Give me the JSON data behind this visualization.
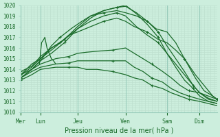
{
  "xlabel": "Pression niveau de la mer( hPa )",
  "bg_color": "#cceedd",
  "grid_color_minor": "#bbddcc",
  "grid_color_major": "#99ccbb",
  "line_color": "#1a6b2a",
  "ylim": [
    1010,
    1020
  ],
  "yticks": [
    1010,
    1011,
    1012,
    1013,
    1014,
    1015,
    1016,
    1017,
    1018,
    1019,
    1020
  ],
  "day_labels": [
    "Mer",
    "Lun",
    "Jeu",
    "Ven",
    "Sam",
    "Dim"
  ],
  "day_positions": [
    0.0,
    0.9,
    2.6,
    4.8,
    6.7,
    8.2
  ],
  "xlim": [
    0,
    9.0
  ],
  "lines": [
    {
      "x": [
        0.0,
        0.5,
        0.9,
        1.4,
        2.0,
        2.6,
        3.2,
        3.8,
        4.4,
        4.8,
        5.3,
        5.8,
        6.3,
        6.7,
        7.1,
        7.5,
        7.9,
        8.2,
        8.6,
        9.0
      ],
      "y": [
        1013.2,
        1014.0,
        1014.8,
        1015.5,
        1016.5,
        1017.8,
        1018.8,
        1019.5,
        1019.8,
        1020.0,
        1019.2,
        1018.2,
        1017.0,
        1015.5,
        1014.2,
        1013.0,
        1012.2,
        1011.5,
        1011.0,
        1010.8
      ]
    },
    {
      "x": [
        0.0,
        0.5,
        0.9,
        1.4,
        2.0,
        2.6,
        3.2,
        3.8,
        4.4,
        4.8,
        5.3,
        5.8,
        6.3,
        6.7,
        7.1,
        7.5,
        7.9,
        8.2,
        8.6,
        9.0
      ],
      "y": [
        1013.5,
        1014.2,
        1015.0,
        1015.8,
        1016.8,
        1018.0,
        1019.0,
        1019.5,
        1019.8,
        1019.9,
        1019.3,
        1018.5,
        1017.5,
        1016.2,
        1015.0,
        1013.8,
        1012.5,
        1011.8,
        1011.2,
        1011.0
      ]
    },
    {
      "x": [
        0.0,
        0.5,
        0.9,
        1.4,
        2.0,
        2.6,
        3.2,
        3.8,
        4.4,
        4.8,
        5.3,
        5.8,
        6.3,
        6.7,
        7.1,
        7.5,
        7.9,
        8.2,
        8.6,
        9.0
      ],
      "y": [
        1013.8,
        1014.3,
        1015.2,
        1016.0,
        1016.8,
        1017.8,
        1018.5,
        1019.0,
        1019.3,
        1019.0,
        1018.0,
        1017.2,
        1016.5,
        1015.5,
        1014.5,
        1013.5,
        1012.5,
        1011.8,
        1011.3,
        1011.0
      ]
    },
    {
      "x": [
        0.0,
        0.5,
        0.9,
        1.6,
        2.2,
        2.6,
        3.0,
        3.5,
        4.2,
        4.8,
        5.2,
        5.6,
        6.0,
        6.5,
        6.9,
        7.3,
        7.7,
        8.2,
        8.6,
        9.0
      ],
      "y": [
        1013.5,
        1014.0,
        1014.5,
        1015.0,
        1015.2,
        1015.5,
        1015.6,
        1015.7,
        1015.8,
        1016.0,
        1015.5,
        1015.0,
        1014.5,
        1013.8,
        1013.2,
        1012.5,
        1012.0,
        1011.8,
        1011.5,
        1011.2
      ]
    },
    {
      "x": [
        0.0,
        0.5,
        0.9,
        1.6,
        2.2,
        2.6,
        3.0,
        3.5,
        4.2,
        4.8,
        5.2,
        5.6,
        6.0,
        6.5,
        6.9,
        7.3,
        7.7,
        8.2,
        8.6,
        9.0
      ],
      "y": [
        1013.2,
        1013.8,
        1014.2,
        1014.5,
        1014.6,
        1014.8,
        1014.8,
        1014.8,
        1014.8,
        1014.8,
        1014.2,
        1013.8,
        1013.2,
        1012.8,
        1012.2,
        1011.8,
        1011.5,
        1011.2,
        1011.0,
        1010.8
      ]
    },
    {
      "x": [
        0.0,
        0.5,
        0.9,
        1.6,
        2.2,
        2.6,
        3.0,
        3.5,
        4.2,
        4.8,
        5.2,
        5.6,
        6.0,
        6.5,
        6.9,
        7.3,
        7.7,
        8.2,
        8.6,
        9.0
      ],
      "y": [
        1013.0,
        1013.5,
        1014.0,
        1014.2,
        1014.2,
        1014.2,
        1014.0,
        1014.0,
        1013.8,
        1013.5,
        1013.2,
        1013.0,
        1012.5,
        1012.2,
        1011.8,
        1011.5,
        1011.2,
        1011.0,
        1010.8,
        1010.6
      ]
    },
    {
      "x": [
        0.0,
        0.5,
        0.9,
        1.4,
        1.8,
        2.2,
        2.6,
        3.2,
        3.8,
        4.4,
        4.8,
        5.2,
        5.8,
        6.3,
        6.7,
        7.1,
        7.5,
        8.0,
        8.4,
        8.8,
        9.0
      ],
      "y": [
        1013.5,
        1014.5,
        1015.0,
        1016.0,
        1016.5,
        1017.2,
        1017.5,
        1018.0,
        1018.5,
        1018.8,
        1018.5,
        1018.0,
        1017.5,
        1016.8,
        1016.5,
        1015.8,
        1015.0,
        1013.5,
        1012.5,
        1011.5,
        1011.2
      ]
    },
    {
      "x": [
        0.0,
        0.5,
        0.9,
        1.4,
        1.8,
        2.3,
        2.8,
        3.2,
        3.8,
        4.4,
        4.8,
        5.3,
        5.8,
        6.2,
        6.7,
        7.1,
        7.5,
        8.0,
        8.4,
        8.8,
        9.0
      ],
      "y": [
        1013.2,
        1014.0,
        1014.8,
        1016.2,
        1017.0,
        1017.8,
        1018.5,
        1019.0,
        1019.3,
        1019.5,
        1019.3,
        1019.0,
        1018.5,
        1017.8,
        1017.5,
        1016.5,
        1015.0,
        1013.2,
        1012.0,
        1011.5,
        1011.2
      ]
    }
  ],
  "lun_bump": {
    "x": [
      0.85,
      0.9,
      0.95,
      1.05,
      1.1,
      1.15,
      1.2,
      1.3,
      1.4,
      1.5,
      1.6
    ],
    "y": [
      1014.5,
      1015.5,
      1016.5,
      1016.8,
      1017.0,
      1016.5,
      1016.0,
      1015.5,
      1015.0,
      1014.8,
      1014.5
    ]
  }
}
